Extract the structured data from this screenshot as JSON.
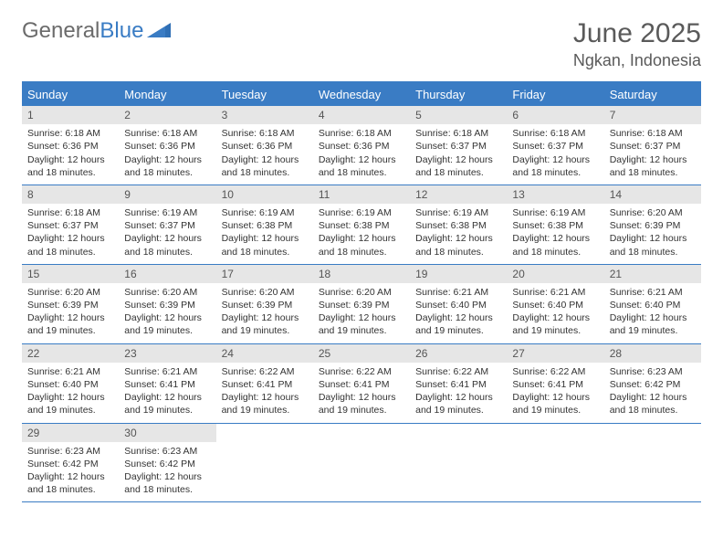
{
  "brand": {
    "part1": "General",
    "part2": "Blue"
  },
  "title": "June 2025",
  "location": "Ngkan, Indonesia",
  "colors": {
    "accent": "#3a7cc4",
    "header_text": "#5a5a5a",
    "daynum_bg": "#e6e6e6",
    "body_text": "#333333",
    "background": "#ffffff"
  },
  "daynames": [
    "Sunday",
    "Monday",
    "Tuesday",
    "Wednesday",
    "Thursday",
    "Friday",
    "Saturday"
  ],
  "weeks": [
    [
      {
        "n": "1",
        "sunrise": "6:18 AM",
        "sunset": "6:36 PM",
        "daylight": "12 hours and 18 minutes."
      },
      {
        "n": "2",
        "sunrise": "6:18 AM",
        "sunset": "6:36 PM",
        "daylight": "12 hours and 18 minutes."
      },
      {
        "n": "3",
        "sunrise": "6:18 AM",
        "sunset": "6:36 PM",
        "daylight": "12 hours and 18 minutes."
      },
      {
        "n": "4",
        "sunrise": "6:18 AM",
        "sunset": "6:36 PM",
        "daylight": "12 hours and 18 minutes."
      },
      {
        "n": "5",
        "sunrise": "6:18 AM",
        "sunset": "6:37 PM",
        "daylight": "12 hours and 18 minutes."
      },
      {
        "n": "6",
        "sunrise": "6:18 AM",
        "sunset": "6:37 PM",
        "daylight": "12 hours and 18 minutes."
      },
      {
        "n": "7",
        "sunrise": "6:18 AM",
        "sunset": "6:37 PM",
        "daylight": "12 hours and 18 minutes."
      }
    ],
    [
      {
        "n": "8",
        "sunrise": "6:18 AM",
        "sunset": "6:37 PM",
        "daylight": "12 hours and 18 minutes."
      },
      {
        "n": "9",
        "sunrise": "6:19 AM",
        "sunset": "6:37 PM",
        "daylight": "12 hours and 18 minutes."
      },
      {
        "n": "10",
        "sunrise": "6:19 AM",
        "sunset": "6:38 PM",
        "daylight": "12 hours and 18 minutes."
      },
      {
        "n": "11",
        "sunrise": "6:19 AM",
        "sunset": "6:38 PM",
        "daylight": "12 hours and 18 minutes."
      },
      {
        "n": "12",
        "sunrise": "6:19 AM",
        "sunset": "6:38 PM",
        "daylight": "12 hours and 18 minutes."
      },
      {
        "n": "13",
        "sunrise": "6:19 AM",
        "sunset": "6:38 PM",
        "daylight": "12 hours and 18 minutes."
      },
      {
        "n": "14",
        "sunrise": "6:20 AM",
        "sunset": "6:39 PM",
        "daylight": "12 hours and 18 minutes."
      }
    ],
    [
      {
        "n": "15",
        "sunrise": "6:20 AM",
        "sunset": "6:39 PM",
        "daylight": "12 hours and 19 minutes."
      },
      {
        "n": "16",
        "sunrise": "6:20 AM",
        "sunset": "6:39 PM",
        "daylight": "12 hours and 19 minutes."
      },
      {
        "n": "17",
        "sunrise": "6:20 AM",
        "sunset": "6:39 PM",
        "daylight": "12 hours and 19 minutes."
      },
      {
        "n": "18",
        "sunrise": "6:20 AM",
        "sunset": "6:39 PM",
        "daylight": "12 hours and 19 minutes."
      },
      {
        "n": "19",
        "sunrise": "6:21 AM",
        "sunset": "6:40 PM",
        "daylight": "12 hours and 19 minutes."
      },
      {
        "n": "20",
        "sunrise": "6:21 AM",
        "sunset": "6:40 PM",
        "daylight": "12 hours and 19 minutes."
      },
      {
        "n": "21",
        "sunrise": "6:21 AM",
        "sunset": "6:40 PM",
        "daylight": "12 hours and 19 minutes."
      }
    ],
    [
      {
        "n": "22",
        "sunrise": "6:21 AM",
        "sunset": "6:40 PM",
        "daylight": "12 hours and 19 minutes."
      },
      {
        "n": "23",
        "sunrise": "6:21 AM",
        "sunset": "6:41 PM",
        "daylight": "12 hours and 19 minutes."
      },
      {
        "n": "24",
        "sunrise": "6:22 AM",
        "sunset": "6:41 PM",
        "daylight": "12 hours and 19 minutes."
      },
      {
        "n": "25",
        "sunrise": "6:22 AM",
        "sunset": "6:41 PM",
        "daylight": "12 hours and 19 minutes."
      },
      {
        "n": "26",
        "sunrise": "6:22 AM",
        "sunset": "6:41 PM",
        "daylight": "12 hours and 19 minutes."
      },
      {
        "n": "27",
        "sunrise": "6:22 AM",
        "sunset": "6:41 PM",
        "daylight": "12 hours and 19 minutes."
      },
      {
        "n": "28",
        "sunrise": "6:23 AM",
        "sunset": "6:42 PM",
        "daylight": "12 hours and 18 minutes."
      }
    ],
    [
      {
        "n": "29",
        "sunrise": "6:23 AM",
        "sunset": "6:42 PM",
        "daylight": "12 hours and 18 minutes."
      },
      {
        "n": "30",
        "sunrise": "6:23 AM",
        "sunset": "6:42 PM",
        "daylight": "12 hours and 18 minutes."
      },
      null,
      null,
      null,
      null,
      null
    ]
  ],
  "labels": {
    "sunrise": "Sunrise:",
    "sunset": "Sunset:",
    "daylight": "Daylight:"
  }
}
